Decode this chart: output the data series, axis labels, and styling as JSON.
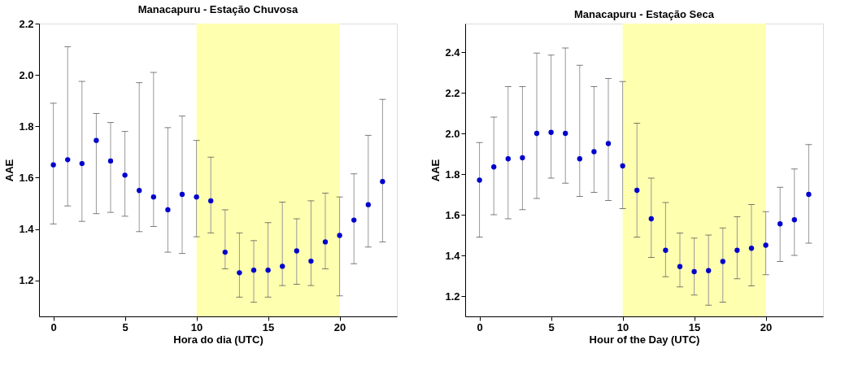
{
  "chart_data": [
    {
      "type": "scatter",
      "title": "Manacapuru - Estação Chuvosa",
      "xlabel": "Hora do dia (UTC)",
      "ylabel": "AAE",
      "x": [
        0,
        1,
        2,
        3,
        4,
        5,
        6,
        7,
        8,
        9,
        10,
        11,
        12,
        13,
        14,
        15,
        16,
        17,
        18,
        19,
        20,
        21,
        22,
        23
      ],
      "series": [
        {
          "color": "#0000cc",
          "values": [
            1.65,
            1.67,
            1.655,
            1.745,
            1.665,
            1.61,
            1.55,
            1.525,
            1.475,
            1.535,
            1.525,
            1.51,
            1.31,
            1.23,
            1.24,
            1.24,
            1.255,
            1.315,
            1.275,
            1.35,
            1.375,
            1.435,
            1.495,
            1.585
          ],
          "errors": [
            [
              1.42,
              1.89
            ],
            [
              1.49,
              2.11
            ],
            [
              1.43,
              1.975
            ],
            [
              1.46,
              1.85
            ],
            [
              1.465,
              1.815
            ],
            [
              1.45,
              1.78
            ],
            [
              1.39,
              1.97
            ],
            [
              1.41,
              2.01
            ],
            [
              1.31,
              1.795
            ],
            [
              1.305,
              1.84
            ],
            [
              1.37,
              1.745
            ],
            [
              1.385,
              1.68
            ],
            [
              1.245,
              1.475
            ],
            [
              1.135,
              1.385
            ],
            [
              1.115,
              1.355
            ],
            [
              1.135,
              1.425
            ],
            [
              1.18,
              1.505
            ],
            [
              1.185,
              1.44
            ],
            [
              1.18,
              1.51
            ],
            [
              1.245,
              1.54
            ],
            [
              1.14,
              1.525
            ],
            [
              1.265,
              1.615
            ],
            [
              1.33,
              1.765
            ],
            [
              1.35,
              1.905
            ]
          ]
        }
      ],
      "xlim": [
        -1,
        24
      ],
      "xticks": [
        0,
        5,
        10,
        15,
        20
      ],
      "ylim": [
        1.06,
        2.2
      ],
      "yticks": [
        1.2,
        1.4,
        1.6,
        1.8,
        {
          "value": 2,
          "label": "2.0"
        },
        2.2
      ],
      "bands": [
        {
          "axis": "x",
          "from": 10,
          "to": 20,
          "color": "#ffffb0"
        }
      ],
      "marker": "circle",
      "grid": false
    },
    {
      "type": "scatter",
      "title": "Manacapuru - Estação Seca",
      "xlabel": "Hour of the Day (UTC)",
      "ylabel": "AAE",
      "x": [
        0,
        1,
        2,
        3,
        4,
        5,
        6,
        7,
        8,
        9,
        10,
        11,
        12,
        13,
        14,
        15,
        16,
        17,
        18,
        19,
        20,
        21,
        22,
        23
      ],
      "series": [
        {
          "color": "#0000cc",
          "values": [
            1.77,
            1.835,
            1.875,
            1.88,
            2.0,
            2.005,
            2.0,
            1.875,
            1.91,
            1.95,
            1.84,
            1.72,
            1.58,
            1.425,
            1.345,
            1.32,
            1.325,
            1.37,
            1.425,
            1.435,
            1.45,
            1.555,
            1.575,
            1.7
          ],
          "errors": [
            [
              1.49,
              1.955
            ],
            [
              1.6,
              2.08
            ],
            [
              1.58,
              2.23
            ],
            [
              1.625,
              2.23
            ],
            [
              1.68,
              2.395
            ],
            [
              1.78,
              2.385
            ],
            [
              1.755,
              2.42
            ],
            [
              1.69,
              2.335
            ],
            [
              1.71,
              2.23
            ],
            [
              1.67,
              2.27
            ],
            [
              1.63,
              2.255
            ],
            [
              1.49,
              2.05
            ],
            [
              1.39,
              1.78
            ],
            [
              1.295,
              1.66
            ],
            [
              1.245,
              1.51
            ],
            [
              1.205,
              1.485
            ],
            [
              1.155,
              1.5
            ],
            [
              1.17,
              1.535
            ],
            [
              1.285,
              1.59
            ],
            [
              1.25,
              1.65
            ],
            [
              1.305,
              1.615
            ],
            [
              1.37,
              1.735
            ],
            [
              1.4,
              1.825
            ],
            [
              1.46,
              1.945
            ]
          ]
        }
      ],
      "xlim": [
        -1,
        24
      ],
      "xticks": [
        0,
        5,
        10,
        15,
        20
      ],
      "ylim": [
        1.1,
        2.54
      ],
      "yticks": [
        1.2,
        1.4,
        1.6,
        1.8,
        {
          "value": 2,
          "label": "2.0"
        },
        2.2,
        2.4
      ],
      "bands": [
        {
          "axis": "x",
          "from": 10,
          "to": 20,
          "color": "#ffffb0"
        }
      ],
      "marker": "circle",
      "grid": false
    }
  ]
}
